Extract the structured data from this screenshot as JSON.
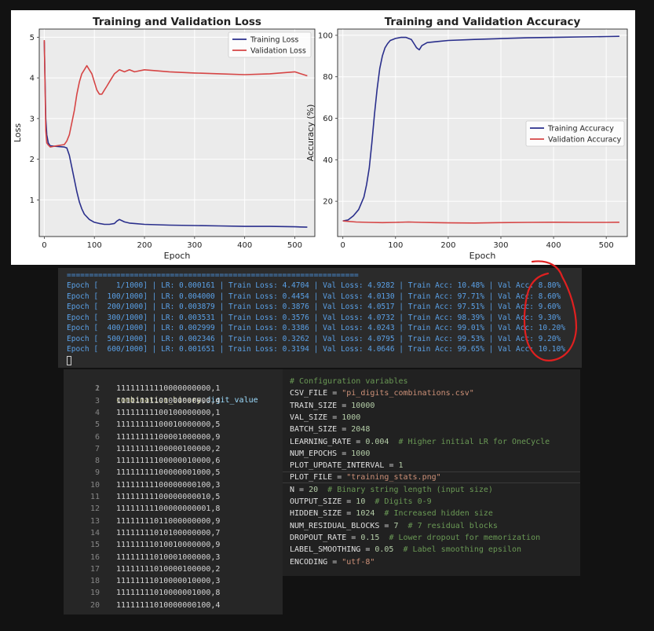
{
  "colors": {
    "train": "#2a2f8c",
    "val": "#d64545",
    "plot_bg": "#ebebeb",
    "terminal_bg": "#2b2b2b",
    "terminal_text": "#5aa0e6",
    "annotation": "#e02020"
  },
  "chart_data": [
    {
      "type": "line",
      "title": "Training and Validation Loss",
      "xlabel": "Epoch",
      "ylabel": "Loss",
      "xlim": [
        -10,
        540
      ],
      "ylim": [
        0.1,
        5.2
      ],
      "xticks": [
        0,
        100,
        200,
        300,
        400,
        500
      ],
      "yticks": [
        1,
        2,
        3,
        4,
        5
      ],
      "grid": true,
      "legend": "upper-right",
      "series": [
        {
          "name": "Training Loss",
          "x": [
            0,
            3,
            5,
            8,
            12,
            20,
            30,
            40,
            45,
            50,
            55,
            60,
            65,
            70,
            75,
            80,
            90,
            100,
            110,
            120,
            130,
            140,
            145,
            150,
            160,
            170,
            180,
            200,
            250,
            300,
            350,
            400,
            450,
            500,
            525
          ],
          "y": [
            4.9,
            3.0,
            2.6,
            2.4,
            2.33,
            2.32,
            2.31,
            2.3,
            2.28,
            2.1,
            1.8,
            1.5,
            1.2,
            0.95,
            0.78,
            0.65,
            0.52,
            0.45,
            0.42,
            0.4,
            0.4,
            0.42,
            0.48,
            0.52,
            0.46,
            0.43,
            0.42,
            0.4,
            0.38,
            0.37,
            0.36,
            0.35,
            0.35,
            0.34,
            0.33
          ]
        },
        {
          "name": "Validation Loss",
          "x": [
            0,
            3,
            5,
            8,
            12,
            20,
            30,
            40,
            45,
            50,
            55,
            60,
            65,
            70,
            75,
            80,
            85,
            90,
            95,
            100,
            105,
            110,
            115,
            120,
            125,
            130,
            135,
            140,
            145,
            150,
            160,
            170,
            180,
            200,
            250,
            300,
            350,
            400,
            450,
            500,
            525
          ],
          "y": [
            4.93,
            2.7,
            2.4,
            2.35,
            2.3,
            2.32,
            2.34,
            2.36,
            2.45,
            2.6,
            2.9,
            3.2,
            3.6,
            3.9,
            4.1,
            4.2,
            4.3,
            4.2,
            4.1,
            3.9,
            3.7,
            3.6,
            3.6,
            3.7,
            3.8,
            3.9,
            4.0,
            4.1,
            4.15,
            4.2,
            4.15,
            4.2,
            4.15,
            4.2,
            4.15,
            4.12,
            4.1,
            4.08,
            4.1,
            4.15,
            4.05
          ]
        }
      ]
    },
    {
      "type": "line",
      "title": "Training and Validation Accuracy",
      "xlabel": "Epoch",
      "ylabel": "Accuracy (%)",
      "xlim": [
        -10,
        540
      ],
      "ylim": [
        3,
        103
      ],
      "xticks": [
        0,
        100,
        200,
        300,
        400,
        500
      ],
      "yticks": [
        20,
        40,
        60,
        80,
        100
      ],
      "grid": true,
      "legend": "center-right",
      "series": [
        {
          "name": "Training Accuracy",
          "x": [
            0,
            10,
            20,
            30,
            40,
            45,
            50,
            55,
            60,
            65,
            70,
            75,
            80,
            85,
            90,
            95,
            100,
            110,
            120,
            130,
            135,
            140,
            145,
            150,
            160,
            180,
            200,
            250,
            300,
            350,
            400,
            450,
            500,
            525
          ],
          "y": [
            10.5,
            11,
            13,
            16,
            22,
            28,
            36,
            48,
            62,
            74,
            84,
            90,
            94,
            96,
            97.5,
            98,
            98.5,
            99,
            99,
            98,
            96,
            94,
            93,
            95,
            96.5,
            97,
            97.5,
            98,
            98.4,
            98.8,
            99,
            99.2,
            99.4,
            99.5
          ]
        },
        {
          "name": "Validation Accuracy",
          "x": [
            0,
            25,
            50,
            75,
            100,
            125,
            150,
            175,
            200,
            250,
            300,
            350,
            400,
            450,
            500,
            525
          ],
          "y": [
            10.5,
            10,
            9.8,
            9.7,
            9.8,
            10,
            9.8,
            9.7,
            9.6,
            9.5,
            9.7,
            9.8,
            9.9,
            9.8,
            9.8,
            9.9
          ]
        }
      ]
    }
  ],
  "terminal": {
    "separator": "=================================================================",
    "epochs": [
      {
        "epoch": "Epoch [    1/1000]",
        "lr": "LR: 0.000161",
        "train_loss": "Train Loss: 4.4704",
        "val_loss": "Val Loss: 4.9282",
        "train_acc": "Train Acc: 10.48%",
        "val_acc": "Val Acc: 8.80%"
      },
      {
        "epoch": "Epoch [  100/1000]",
        "lr": "LR: 0.004000",
        "train_loss": "Train Loss: 0.4454",
        "val_loss": "Val Loss: 4.0130",
        "train_acc": "Train Acc: 97.71%",
        "val_acc": "Val Acc: 8.60%"
      },
      {
        "epoch": "Epoch [  200/1000]",
        "lr": "LR: 0.003879",
        "train_loss": "Train Loss: 0.3876",
        "val_loss": "Val Loss: 4.0517",
        "train_acc": "Train Acc: 97.51%",
        "val_acc": "Val Acc: 9.60%"
      },
      {
        "epoch": "Epoch [  300/1000]",
        "lr": "LR: 0.003531",
        "train_loss": "Train Loss: 0.3576",
        "val_loss": "Val Loss: 4.0732",
        "train_acc": "Train Acc: 98.39%",
        "val_acc": "Val Acc: 9.30%"
      },
      {
        "epoch": "Epoch [  400/1000]",
        "lr": "LR: 0.002999",
        "train_loss": "Train Loss: 0.3386",
        "val_loss": "Val Loss: 4.0243",
        "train_acc": "Train Acc: 99.01%",
        "val_acc": "Val Acc: 10.20%"
      },
      {
        "epoch": "Epoch [  500/1000]",
        "lr": "LR: 0.002346",
        "train_loss": "Train Loss: 0.3262",
        "val_loss": "Val Loss: 4.0795",
        "train_acc": "Train Acc: 99.53%",
        "val_acc": "Val Acc: 9.20%"
      },
      {
        "epoch": "Epoch [  600/1000]",
        "lr": "LR: 0.001651",
        "train_loss": "Train Loss: 0.3194",
        "val_loss": "Val Loss: 4.0646",
        "train_acc": "Train Acc: 99.65%",
        "val_acc": "Val Acc: 10.10%"
      }
    ]
  },
  "csv": {
    "header_col1": "combination_binary",
    "header_comma": ",",
    "header_col2": "digit_value",
    "rows": [
      "11111111110000000000,1",
      "11111111101000000000,4",
      "11111111100100000000,1",
      "11111111100010000000,5",
      "11111111100001000000,9",
      "11111111100000100000,2",
      "11111111100000010000,6",
      "11111111100000001000,5",
      "11111111100000000100,3",
      "11111111100000000010,5",
      "11111111100000000001,8",
      "11111111011000000000,9",
      "11111111010100000000,7",
      "11111111010010000000,9",
      "11111111010001000000,3",
      "11111111010000100000,2",
      "11111111010000010000,3",
      "11111111010000001000,8",
      "11111111010000000100,4"
    ]
  },
  "config": [
    [
      {
        "t": "# Configuration variables",
        "c": "c-com"
      }
    ],
    [
      {
        "t": "CSV_FILE",
        "c": "c-var"
      },
      {
        "t": " = ",
        "c": ""
      },
      {
        "t": "\"pi_digits_combinations.csv\"",
        "c": "c-str"
      }
    ],
    [
      {
        "t": "TRAIN_SIZE",
        "c": "c-var"
      },
      {
        "t": " = ",
        "c": ""
      },
      {
        "t": "10000",
        "c": "c-num"
      }
    ],
    [
      {
        "t": "VAL_SIZE",
        "c": "c-var"
      },
      {
        "t": " = ",
        "c": ""
      },
      {
        "t": "1000",
        "c": "c-num"
      }
    ],
    [
      {
        "t": "BATCH_SIZE",
        "c": "c-var"
      },
      {
        "t": " = ",
        "c": ""
      },
      {
        "t": "2048",
        "c": "c-num"
      }
    ],
    [
      {
        "t": "LEARNING_RATE",
        "c": "c-var"
      },
      {
        "t": " = ",
        "c": ""
      },
      {
        "t": "0.004",
        "c": "c-num"
      },
      {
        "t": "  # Higher initial LR for OneCycle",
        "c": "c-com"
      }
    ],
    [
      {
        "t": "NUM_EPOCHS",
        "c": "c-var"
      },
      {
        "t": " = ",
        "c": ""
      },
      {
        "t": "1000",
        "c": "c-num"
      }
    ],
    [
      {
        "t": "PLOT_UPDATE_INTERVAL",
        "c": "c-var"
      },
      {
        "t": " = ",
        "c": ""
      },
      {
        "t": "1",
        "c": "c-num"
      }
    ],
    [
      {
        "t": "PLOT_FILE",
        "c": "c-var"
      },
      {
        "t": " = ",
        "c": ""
      },
      {
        "t": "\"training_stats.png\"",
        "c": "c-str"
      }
    ],
    [
      {
        "t": "N",
        "c": "c-var"
      },
      {
        "t": " = ",
        "c": ""
      },
      {
        "t": "20",
        "c": "c-num"
      },
      {
        "t": "  # Binary string length (input size)",
        "c": "c-com"
      }
    ],
    [
      {
        "t": "OUTPUT_SIZE",
        "c": "c-var"
      },
      {
        "t": " = ",
        "c": ""
      },
      {
        "t": "10",
        "c": "c-num"
      },
      {
        "t": "  # Digits 0-9",
        "c": "c-com"
      }
    ],
    [
      {
        "t": "HIDDEN_SIZE",
        "c": "c-var"
      },
      {
        "t": " = ",
        "c": ""
      },
      {
        "t": "1024",
        "c": "c-num"
      },
      {
        "t": "  # Increased hidden size",
        "c": "c-com"
      }
    ],
    [
      {
        "t": "NUM_RESIDUAL_BLOCKS",
        "c": "c-var"
      },
      {
        "t": " = ",
        "c": ""
      },
      {
        "t": "7",
        "c": "c-num"
      },
      {
        "t": "  # 7 residual blocks",
        "c": "c-com"
      }
    ],
    [
      {
        "t": "DROPOUT_RATE",
        "c": "c-var"
      },
      {
        "t": " = ",
        "c": ""
      },
      {
        "t": "0.15",
        "c": "c-num"
      },
      {
        "t": "  # Lower dropout for memorization",
        "c": "c-com"
      }
    ],
    [
      {
        "t": "LABEL_SMOOTHING",
        "c": "c-var"
      },
      {
        "t": " = ",
        "c": ""
      },
      {
        "t": "0.05",
        "c": "c-num"
      },
      {
        "t": "  # Label smoothing epsilon",
        "c": "c-com"
      }
    ],
    [
      {
        "t": "ENCODING",
        "c": "c-var"
      },
      {
        "t": " = ",
        "c": ""
      },
      {
        "t": "\"utf-8\"",
        "c": "c-str"
      }
    ]
  ]
}
